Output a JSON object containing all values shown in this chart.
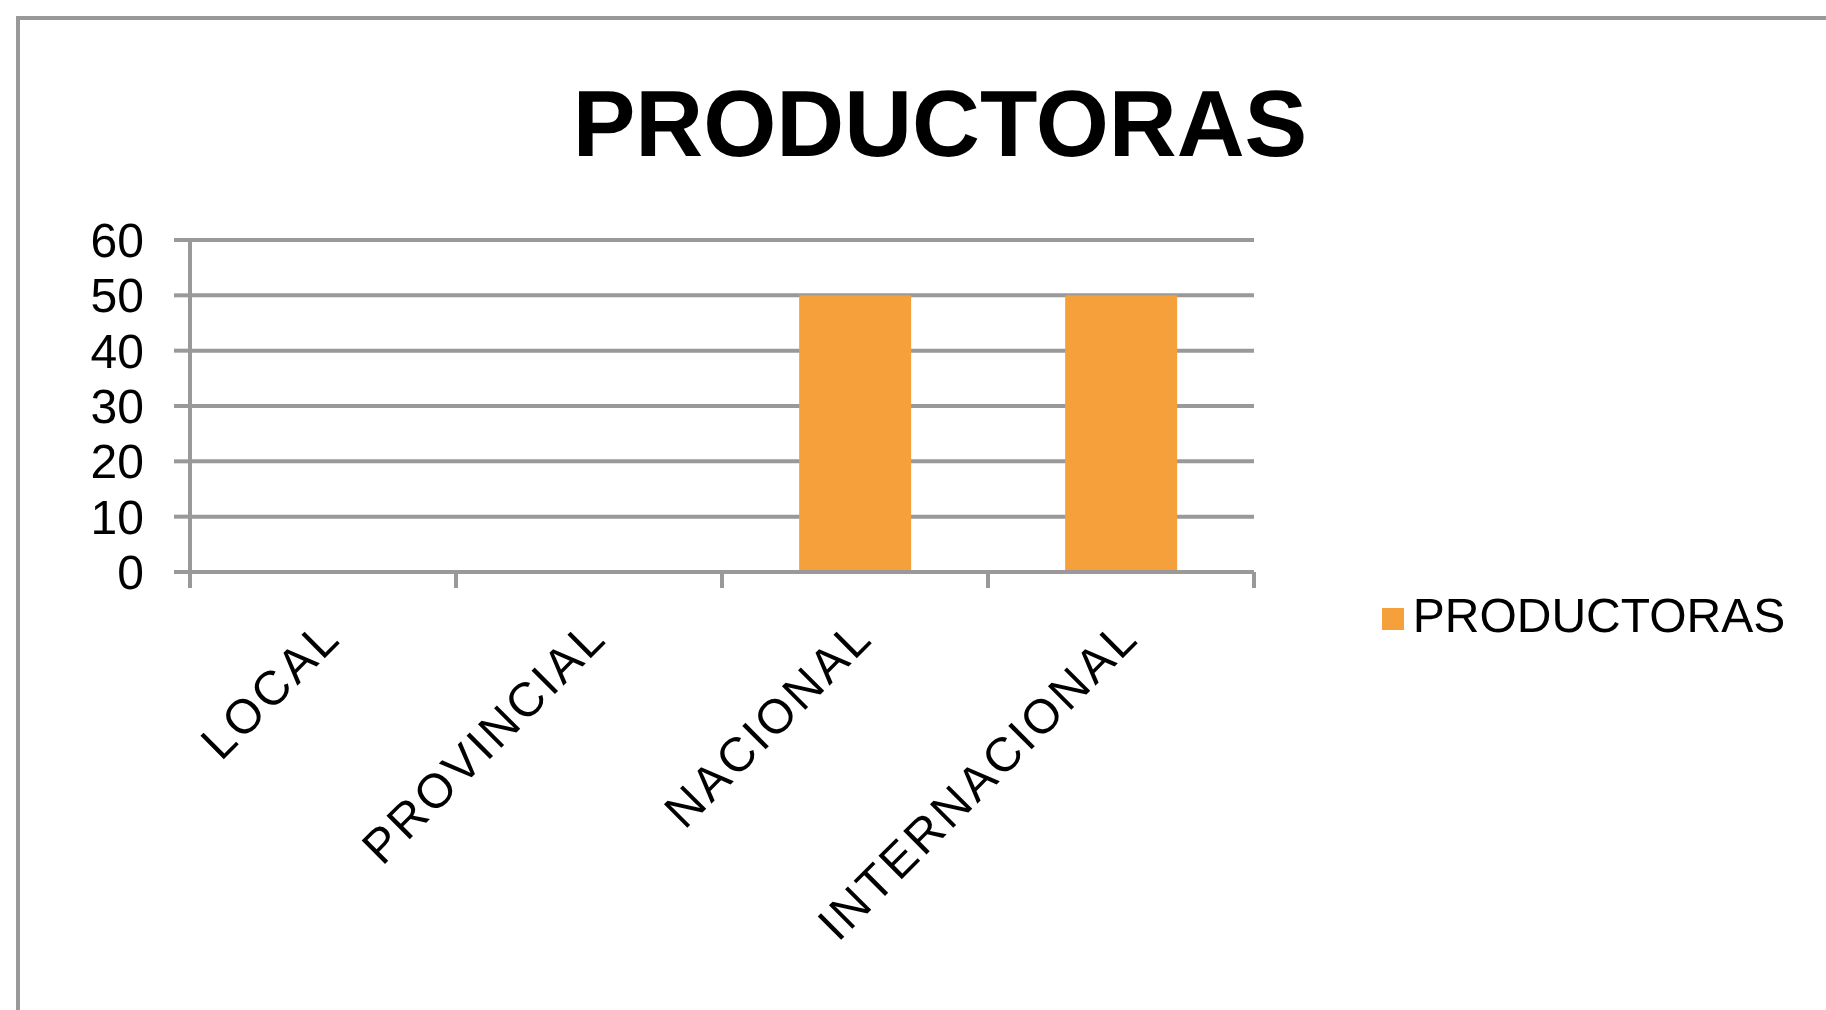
{
  "chart_data": {
    "type": "bar",
    "title": "PRODUCTORAS",
    "categories": [
      "LOCAL",
      "PROVINCIAL",
      "NACIONAL",
      "INTERNACIONAL"
    ],
    "series": [
      {
        "name": "PRODUCTORAS",
        "color": "#f5a03a",
        "values": [
          0,
          0,
          50,
          50
        ]
      }
    ],
    "ylim": [
      0,
      60
    ],
    "yticks": [
      0,
      10,
      20,
      30,
      40,
      50,
      60
    ],
    "grid": "y",
    "legend": "right"
  }
}
